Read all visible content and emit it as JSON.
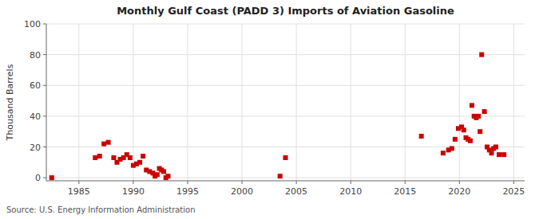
{
  "chart_data": {
    "type": "scatter",
    "title": "Monthly Gulf Coast (PADD 3) Imports of Aviation Gasoline",
    "ylabel": "Thousand Barrels",
    "source": "Source: U.S. Energy Information Administration",
    "color": "#cc0000",
    "marker": "square",
    "grid": true,
    "xlim": [
      1982,
      2026
    ],
    "ylim": [
      -2,
      100
    ],
    "xticks": [
      1985,
      1990,
      1995,
      2000,
      2005,
      2010,
      2015,
      2020,
      2025
    ],
    "yticks": [
      0,
      20,
      40,
      60,
      80,
      100
    ],
    "x": [
      1982.5,
      1986.5,
      1986.9,
      1987.3,
      1987.7,
      1988.2,
      1988.5,
      1988.8,
      1989.1,
      1989.4,
      1989.7,
      1990.0,
      1990.3,
      1990.6,
      1990.9,
      1991.2,
      1991.5,
      1991.8,
      1992.0,
      1992.2,
      1992.4,
      1992.6,
      1992.8,
      1993.0,
      1993.2,
      2003.5,
      2004.0,
      2016.5,
      2018.5,
      2019.0,
      2019.3,
      2019.6,
      2019.9,
      2020.2,
      2020.4,
      2020.6,
      2020.8,
      2021.0,
      2021.15,
      2021.35,
      2021.55,
      2021.75,
      2021.9,
      2022.05,
      2022.3,
      2022.55,
      2022.75,
      2022.95,
      2023.15,
      2023.35,
      2023.65,
      2024.1
    ],
    "values": [
      0,
      13,
      14,
      22,
      23,
      13,
      10,
      12,
      13,
      15,
      13,
      8,
      9,
      10,
      14,
      5,
      4,
      3,
      1,
      2,
      6,
      5,
      4,
      0,
      1,
      1,
      13,
      27,
      16,
      18,
      19,
      25,
      32,
      33,
      31,
      26,
      25,
      24,
      47,
      40,
      39,
      40,
      30,
      80,
      43,
      20,
      18,
      16,
      19,
      20,
      15,
      15
    ]
  }
}
